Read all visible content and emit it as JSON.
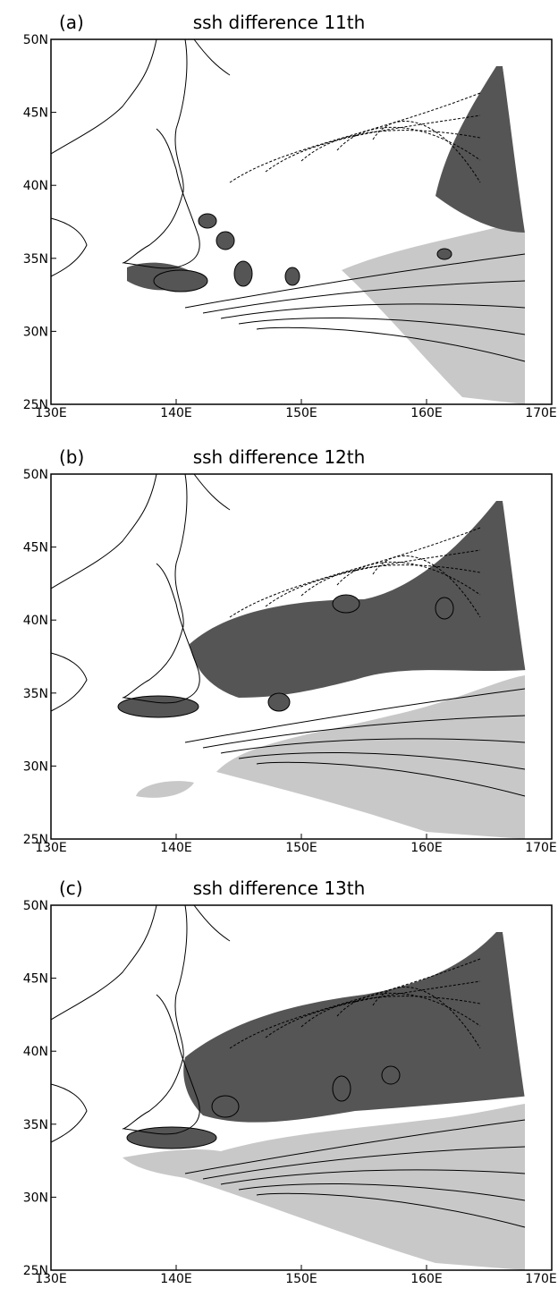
{
  "panels": [
    {
      "label": "(a)",
      "title": "ssh difference 11th"
    },
    {
      "label": "(b)",
      "title": "ssh difference 12th"
    },
    {
      "label": "(c)",
      "title": "ssh difference 13th"
    }
  ],
  "x_tick_labels": [
    "130E",
    "140E",
    "150E",
    "160E",
    "170E"
  ],
  "y_tick_labels": [
    "25N",
    "30N",
    "35N",
    "40N",
    "45N",
    "50N"
  ]
}
